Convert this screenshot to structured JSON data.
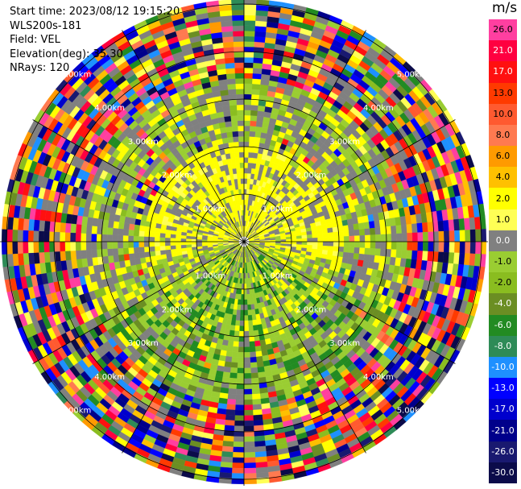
{
  "header": {
    "start_time": "Start time: 2023/08/12 19:15:20",
    "instrument": "WLS200s-181",
    "field": "Field: VEL",
    "elevation": "Elevation(deg): 35.30",
    "nrays": "NRays: 120"
  },
  "colorbar": {
    "unit": "m/s",
    "levels": [
      {
        "label": "26.0",
        "color": "#ff3fa0"
      },
      {
        "label": "21.0",
        "color": "#ff0040"
      },
      {
        "label": "17.0",
        "color": "#ff1010"
      },
      {
        "label": "13.0",
        "color": "#ff3a00"
      },
      {
        "label": "10.0",
        "color": "#ff5a30"
      },
      {
        "label": "8.0",
        "color": "#ff7a50"
      },
      {
        "label": "6.0",
        "color": "#ff9a00"
      },
      {
        "label": "4.0",
        "color": "#ffc000"
      },
      {
        "label": "2.0",
        "color": "#ffff00"
      },
      {
        "label": "1.0",
        "color": "#ffff55"
      },
      {
        "label": "0.0",
        "color": "#808080"
      },
      {
        "label": "-1.0",
        "color": "#9acd32"
      },
      {
        "label": "-2.0",
        "color": "#8abd20"
      },
      {
        "label": "-4.0",
        "color": "#6b8e23"
      },
      {
        "label": "-6.0",
        "color": "#228b22"
      },
      {
        "label": "-8.0",
        "color": "#2e8b57"
      },
      {
        "label": "-10.0",
        "color": "#1e90ff"
      },
      {
        "label": "-13.0",
        "color": "#0000ff"
      },
      {
        "label": "-17.0",
        "color": "#0000cd"
      },
      {
        "label": "-21.0",
        "color": "#00008b"
      },
      {
        "label": "-26.0",
        "color": "#191970"
      },
      {
        "label": "-30.0",
        "color": "#0b0b4a"
      }
    ]
  },
  "chart_data": {
    "type": "heatmap",
    "projection": "polar PPI",
    "field": "VEL",
    "unit": "m/s",
    "rays": 120,
    "range_rings": [
      {
        "label": "1.00km",
        "range_km": 1.0
      },
      {
        "label": "2.00km",
        "range_km": 2.0
      },
      {
        "label": "3.00km",
        "range_km": 3.0
      },
      {
        "label": "4.00km",
        "range_km": 4.0
      },
      {
        "label": "5.00km",
        "range_km": 5.0
      }
    ],
    "max_range_km": 5.1,
    "regions": [
      {
        "range_km": [
          0.0,
          2.1
        ],
        "dominant_values_ms": [
          0.0,
          2.0,
          1.0,
          -1.0
        ],
        "note": "yellow/gray core with green south"
      },
      {
        "range_km": [
          2.1,
          3.4
        ],
        "dominant_values_ms": [
          0.0,
          -1.0,
          -2.0,
          2.0
        ]
      },
      {
        "range_km": [
          3.4,
          5.1
        ],
        "dominant_values_ms": "noise (all colours)"
      }
    ]
  }
}
